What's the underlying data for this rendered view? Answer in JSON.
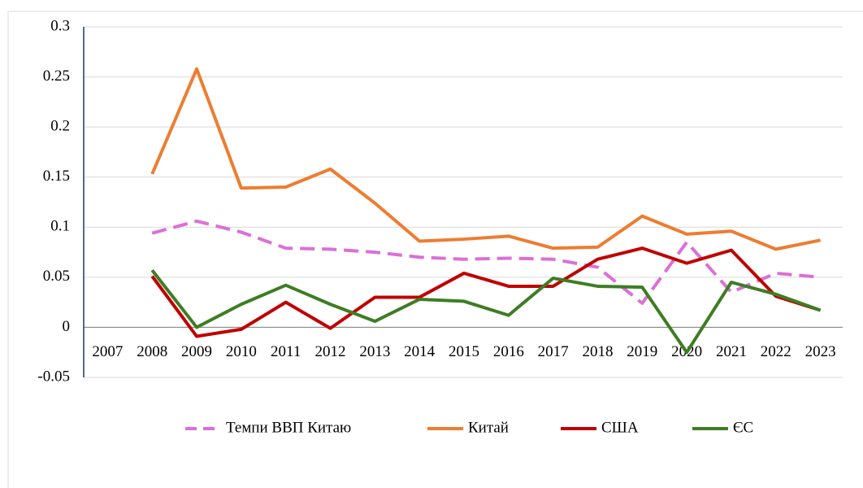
{
  "chart_data": {
    "type": "line",
    "categories": [
      "2007",
      "2008",
      "2009",
      "2010",
      "2011",
      "2012",
      "2013",
      "2014",
      "2015",
      "2016",
      "2017",
      "2018",
      "2019",
      "2020",
      "2021",
      "2022",
      "2023"
    ],
    "series": [
      {
        "name": "Темпи ВВП Китаю",
        "color": "#da70d6",
        "dashed": true,
        "values": [
          null,
          0.094,
          0.106,
          0.095,
          0.079,
          0.078,
          0.075,
          0.07,
          0.068,
          0.069,
          0.068,
          0.06,
          0.024,
          0.085,
          0.035,
          0.054,
          0.05
        ]
      },
      {
        "name": "Китай",
        "color": "#ed7d31",
        "values": [
          null,
          0.153,
          0.258,
          0.139,
          0.14,
          0.158,
          0.124,
          0.086,
          0.088,
          0.091,
          0.079,
          0.08,
          0.111,
          0.093,
          0.096,
          0.078,
          0.087
        ]
      },
      {
        "name": "США",
        "color": "#c00000",
        "values": [
          null,
          0.051,
          -0.009,
          -0.002,
          0.025,
          -0.001,
          0.03,
          0.03,
          0.054,
          0.041,
          0.041,
          0.068,
          0.079,
          0.064,
          0.077,
          0.031,
          0.017
        ]
      },
      {
        "name": "ЄС",
        "color": "#3e7d24",
        "values": [
          null,
          0.057,
          0.0,
          0.023,
          0.042,
          0.023,
          0.006,
          0.028,
          0.026,
          0.012,
          0.049,
          0.041,
          0.04,
          -0.025,
          0.045,
          0.033,
          0.017
        ]
      }
    ],
    "ylim": [
      -0.05,
      0.3
    ],
    "yticks": [
      -0.05,
      0,
      0.05,
      0.1,
      0.15,
      0.2,
      0.25,
      0.3
    ],
    "grid": true,
    "legend": "bottom"
  }
}
